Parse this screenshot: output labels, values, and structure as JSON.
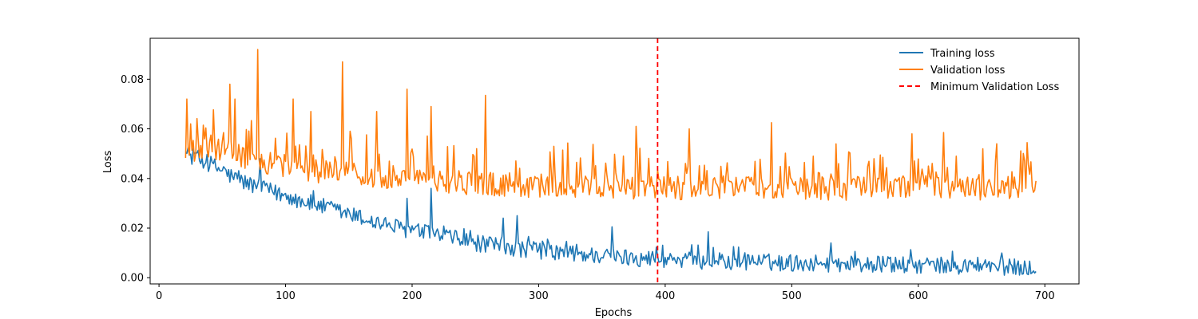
{
  "chart_data": {
    "type": "line",
    "title": "",
    "xlabel": "Epochs",
    "ylabel": "Loss",
    "xlim": [
      -7,
      727
    ],
    "ylim": [
      -0.0025,
      0.0965
    ],
    "xticks": [
      0,
      100,
      200,
      300,
      400,
      500,
      600,
      700
    ],
    "yticks": [
      0.0,
      0.02,
      0.04,
      0.06,
      0.08
    ],
    "ytick_labels": [
      "0.00",
      "0.02",
      "0.04",
      "0.06",
      "0.08"
    ],
    "grid": false,
    "legend_position": "top-right",
    "series": [
      {
        "name": "Training loss",
        "color": "#1f77b4",
        "x_start": 21,
        "x_end": 693,
        "anchors": [
          [
            21,
            0.05
          ],
          [
            40,
            0.046
          ],
          [
            60,
            0.04
          ],
          [
            80,
            0.036
          ],
          [
            100,
            0.033
          ],
          [
            120,
            0.03
          ],
          [
            140,
            0.027
          ],
          [
            160,
            0.024
          ],
          [
            180,
            0.021
          ],
          [
            200,
            0.019
          ],
          [
            220,
            0.017
          ],
          [
            240,
            0.015
          ],
          [
            260,
            0.013
          ],
          [
            280,
            0.012
          ],
          [
            300,
            0.011
          ],
          [
            330,
            0.0095
          ],
          [
            360,
            0.0085
          ],
          [
            400,
            0.0075
          ],
          [
            450,
            0.0065
          ],
          [
            500,
            0.006
          ],
          [
            550,
            0.0055
          ],
          [
            600,
            0.005
          ],
          [
            650,
            0.0045
          ],
          [
            693,
            0.004
          ]
        ],
        "noise": 0.0035,
        "spikes": [
          [
            21,
            0.0505
          ],
          [
            80,
            0.048
          ],
          [
            196,
            0.032
          ],
          [
            215,
            0.036
          ],
          [
            272,
            0.024
          ],
          [
            283,
            0.025
          ],
          [
            358,
            0.0205
          ],
          [
            434,
            0.0185
          ],
          [
            531,
            0.014
          ],
          [
            693,
            0.0025
          ]
        ]
      },
      {
        "name": "Validation loss",
        "color": "#ff7f0e",
        "x_start": 21,
        "x_end": 693,
        "anchors": [
          [
            21,
            0.05
          ],
          [
            40,
            0.052
          ],
          [
            60,
            0.05
          ],
          [
            80,
            0.047
          ],
          [
            100,
            0.045
          ],
          [
            120,
            0.043
          ],
          [
            150,
            0.042
          ],
          [
            200,
            0.04
          ],
          [
            250,
            0.038
          ],
          [
            300,
            0.037
          ],
          [
            350,
            0.0365
          ],
          [
            400,
            0.036
          ],
          [
            450,
            0.0365
          ],
          [
            500,
            0.036
          ],
          [
            550,
            0.036
          ],
          [
            600,
            0.0365
          ],
          [
            650,
            0.036
          ],
          [
            693,
            0.036
          ]
        ],
        "noise": 0.0048,
        "spikes": [
          [
            22,
            0.072
          ],
          [
            25,
            0.062
          ],
          [
            56,
            0.078
          ],
          [
            60,
            0.072
          ],
          [
            78,
            0.092
          ],
          [
            106,
            0.072
          ],
          [
            120,
            0.067
          ],
          [
            145,
            0.087
          ],
          [
            172,
            0.067
          ],
          [
            196,
            0.076
          ],
          [
            215,
            0.069
          ],
          [
            258,
            0.0735
          ],
          [
            377,
            0.061
          ],
          [
            419,
            0.06
          ],
          [
            484,
            0.0625
          ],
          [
            595,
            0.058
          ],
          [
            620,
            0.0585
          ],
          [
            693,
            0.039
          ]
        ]
      }
    ],
    "vline": {
      "name": "Minimum Validation Loss",
      "x": 394,
      "color": "#ff0000",
      "style": "dashed"
    }
  }
}
